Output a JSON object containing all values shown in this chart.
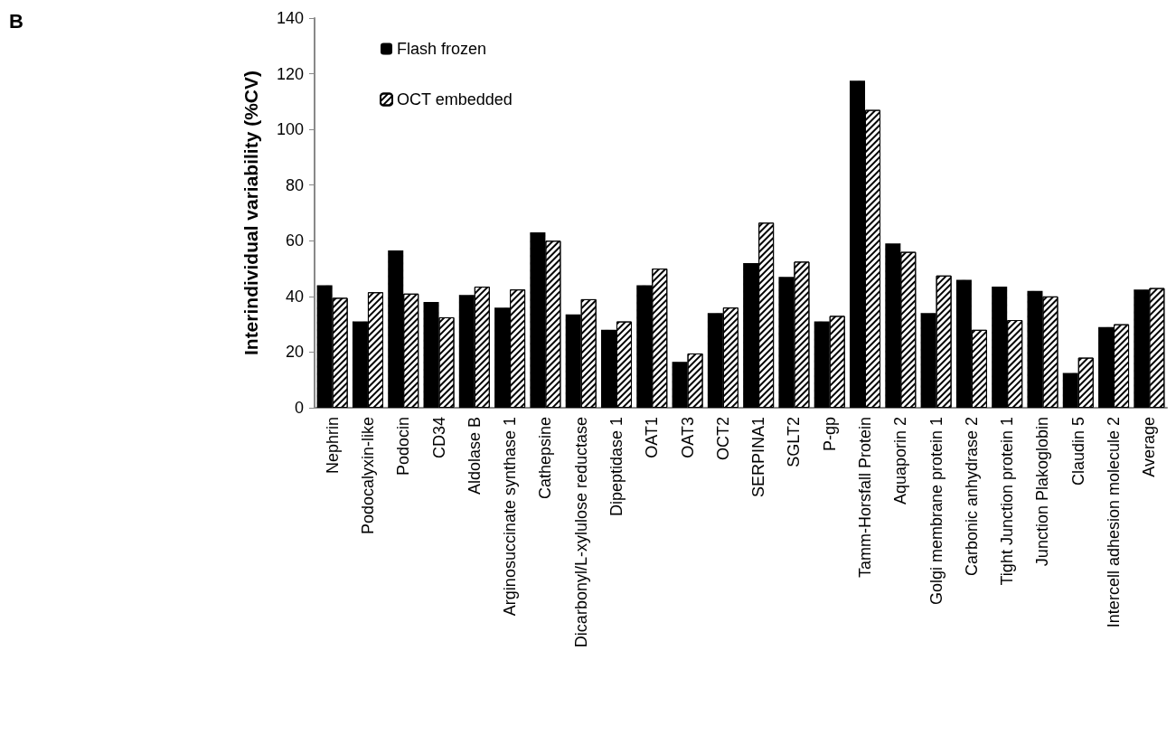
{
  "chart_data": {
    "type": "bar",
    "ylabel": "Interindividual variability (%CV)",
    "annotations": [
      "B"
    ],
    "categories": [
      "Nephrin",
      "Podocalyxin-like",
      "Podocin",
      "CD34",
      "Aldolase B",
      "Arginosuccinate synthase 1",
      "Cathepsine",
      "Dicarbonyl/L-xylulose reductase",
      "Dipeptidase 1",
      "OAT1",
      "OAT3",
      "OCT2",
      "SERPINA1",
      "SGLT2",
      "P-gp",
      "Tamm-Horsfall Protein",
      "Aquaporin 2",
      "Golgi membrane protein 1",
      "Carbonic anhydrase 2",
      "Tight Junction protein 1",
      "Junction Plakoglobin",
      "Claudin 5",
      "Intercell adhesion molecule 2",
      "Average"
    ],
    "series": [
      {
        "name": "Flash frozen",
        "color": "#000000",
        "values": [
          44,
          31,
          56.5,
          38,
          40.5,
          36,
          63,
          33.5,
          28,
          44,
          16.5,
          34,
          52,
          47,
          31,
          117.5,
          59,
          34,
          46,
          43.5,
          42,
          12.5,
          29,
          42.5
        ]
      },
      {
        "name": "OCT embedded",
        "color": "#ffffff",
        "values": [
          39.5,
          41.5,
          41,
          32.5,
          43.5,
          42.5,
          60,
          39,
          31,
          50,
          19.5,
          36,
          66.5,
          52.5,
          33,
          107,
          56,
          47.5,
          28,
          31.5,
          40,
          18,
          30,
          43
        ]
      }
    ],
    "ylim": [
      0,
      140
    ],
    "yticks": [
      0,
      20,
      40,
      60,
      80,
      100,
      120,
      140
    ],
    "grid": false,
    "legend": "top left"
  }
}
